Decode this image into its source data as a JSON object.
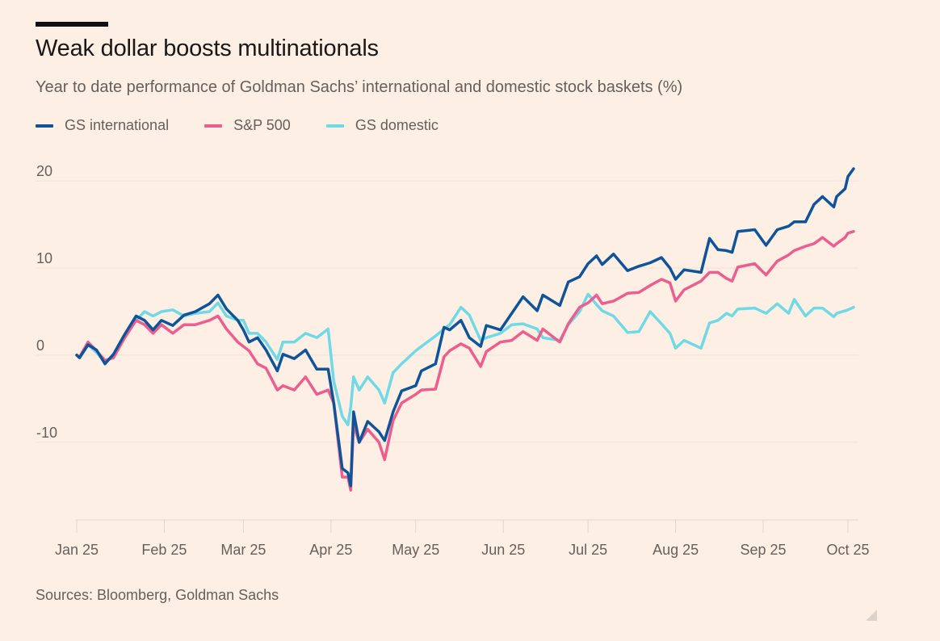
{
  "title": "Weak dollar boosts multinationals",
  "subtitle": "Year to date performance of Goldman Sachs’ international and domestic stock baskets (%)",
  "source": "Sources: Bloomberg, Goldman Sachs",
  "chart_data": {
    "type": "line",
    "title": "Weak dollar boosts multinationals",
    "xlabel": "",
    "ylabel": "",
    "legend": "top-left",
    "grid": true,
    "ylim": [
      -19,
      22.6
    ],
    "xlim": [
      "2025-01-01",
      "2025-10-01"
    ],
    "yticks": [
      -10,
      0,
      10,
      20
    ],
    "ytick_labels": [
      "-10",
      "0",
      "10",
      "20"
    ],
    "xticks": [
      "2025-01-01",
      "2025-02-01",
      "2025-03-01",
      "2025-04-01",
      "2025-05-01",
      "2025-06-01",
      "2025-07-01",
      "2025-08-01",
      "2025-09-01",
      "2025-10-01"
    ],
    "xtick_labels": [
      "Jan 25",
      "Feb 25",
      "Mar 25",
      "Apr 25",
      "May 25",
      "Jun 25",
      "Jul 25",
      "Aug 25",
      "Sep 25",
      "Oct 25"
    ],
    "x": [
      "2025-01-01",
      "2025-01-02",
      "2025-01-05",
      "2025-01-08",
      "2025-01-11",
      "2025-01-14",
      "2025-01-18",
      "2025-01-22",
      "2025-01-25",
      "2025-01-28",
      "2025-01-31",
      "2025-02-04",
      "2025-02-08",
      "2025-02-12",
      "2025-02-17",
      "2025-02-20",
      "2025-02-23",
      "2025-02-27",
      "2025-03-01",
      "2025-03-03",
      "2025-03-06",
      "2025-03-09",
      "2025-03-13",
      "2025-03-15",
      "2025-03-19",
      "2025-03-23",
      "2025-03-27",
      "2025-03-31",
      "2025-04-02",
      "2025-04-05",
      "2025-04-07",
      "2025-04-08",
      "2025-04-09",
      "2025-04-11",
      "2025-04-14",
      "2025-04-18",
      "2025-04-20",
      "2025-04-23",
      "2025-04-26",
      "2025-05-01",
      "2025-05-03",
      "2025-05-08",
      "2025-05-11",
      "2025-05-13",
      "2025-05-17",
      "2025-05-20",
      "2025-05-24",
      "2025-05-26",
      "2025-05-31",
      "2025-06-04",
      "2025-06-08",
      "2025-06-13",
      "2025-06-15",
      "2025-06-21",
      "2025-06-24",
      "2025-06-28",
      "2025-07-01",
      "2025-07-04",
      "2025-07-06",
      "2025-07-10",
      "2025-07-15",
      "2025-07-19",
      "2025-07-23",
      "2025-07-27",
      "2025-07-30",
      "2025-08-01",
      "2025-08-04",
      "2025-08-10",
      "2025-08-13",
      "2025-08-16",
      "2025-08-19",
      "2025-08-21",
      "2025-08-23",
      "2025-08-29",
      "2025-09-02",
      "2025-09-06",
      "2025-09-10",
      "2025-09-12",
      "2025-09-16",
      "2025-09-19",
      "2025-09-22",
      "2025-09-26",
      "2025-09-27",
      "2025-09-30",
      "2025-10-01",
      "2025-10-03"
    ],
    "series": [
      {
        "name": "GS international",
        "color": "#0f5499",
        "values": [
          0,
          -0.3,
          1.2,
          0.6,
          -1.0,
          0.1,
          2.4,
          4.5,
          4.0,
          2.9,
          4.0,
          3.4,
          4.6,
          5.0,
          5.9,
          6.9,
          5.3,
          4.0,
          2.9,
          1.5,
          2.0,
          0.6,
          -1.8,
          0.1,
          -0.4,
          0.6,
          -1.6,
          -1.6,
          -5.5,
          -13.0,
          -13.5,
          -15.0,
          -6.5,
          -10.0,
          -7.6,
          -8.8,
          -9.8,
          -6.5,
          -4.1,
          -3.5,
          -1.8,
          -1.0,
          3.2,
          2.9,
          4.0,
          2.0,
          1.0,
          3.4,
          2.9,
          4.8,
          6.7,
          5.1,
          6.9,
          5.7,
          8.4,
          9.0,
          10.5,
          11.4,
          10.4,
          11.6,
          9.7,
          10.2,
          10.6,
          11.2,
          10.0,
          8.7,
          9.8,
          9.5,
          13.4,
          12.1,
          12.0,
          11.8,
          14.2,
          14.4,
          12.6,
          14.4,
          14.8,
          15.3,
          15.3,
          17.3,
          18.2,
          17.0,
          18.2,
          19.1,
          20.5,
          21.4
        ]
      },
      {
        "name": "S&P 500",
        "color": "#eb5e8d",
        "values": [
          0,
          -0.2,
          1.5,
          0.5,
          -0.6,
          -0.3,
          2.0,
          4.0,
          3.5,
          2.5,
          3.5,
          2.5,
          3.5,
          3.5,
          4.0,
          4.5,
          3.0,
          1.5,
          1.0,
          0.5,
          -1.0,
          -1.5,
          -4.0,
          -3.5,
          -4.0,
          -2.5,
          -4.5,
          -4.0,
          -5.5,
          -14.0,
          -14.0,
          -15.5,
          -8.0,
          -10.0,
          -8.5,
          -10.0,
          -12.0,
          -7.5,
          -5.5,
          -4.5,
          -4.0,
          -3.9,
          -0.2,
          0.5,
          1.3,
          0.8,
          -1.3,
          0.4,
          1.5,
          1.7,
          2.7,
          1.7,
          3.0,
          1.5,
          3.6,
          5.5,
          6.0,
          6.9,
          5.9,
          6.2,
          7.1,
          7.2,
          8.0,
          8.7,
          8.3,
          6.2,
          7.5,
          8.5,
          9.5,
          9.5,
          8.8,
          8.5,
          10.1,
          10.5,
          9.2,
          10.8,
          11.5,
          12.0,
          12.5,
          12.8,
          13.5,
          12.5,
          12.8,
          13.5,
          14.0,
          14.2
        ]
      },
      {
        "name": "GS domestic",
        "color": "#6fdae6",
        "values": [
          0,
          -0.3,
          1.2,
          0.3,
          -0.8,
          0.0,
          2.2,
          4.0,
          5.0,
          4.5,
          5.0,
          5.2,
          4.5,
          4.8,
          5.0,
          6.0,
          4.5,
          4.0,
          4.0,
          2.5,
          2.5,
          1.5,
          -0.5,
          1.5,
          1.5,
          2.5,
          2.0,
          3.0,
          -3.0,
          -7.0,
          -8.0,
          -6.0,
          -2.5,
          -4.0,
          -2.5,
          -4.0,
          -5.5,
          -2.0,
          -1.0,
          0.5,
          1.0,
          2.2,
          3.0,
          3.5,
          5.5,
          4.6,
          1.7,
          2.0,
          2.5,
          3.5,
          3.6,
          3.0,
          2.0,
          1.7,
          3.5,
          5.0,
          7.0,
          5.8,
          5.1,
          4.5,
          2.6,
          2.7,
          5.0,
          3.6,
          2.5,
          0.8,
          1.7,
          0.8,
          3.7,
          4.0,
          4.8,
          4.5,
          5.3,
          5.4,
          4.8,
          5.9,
          4.8,
          6.4,
          4.5,
          5.4,
          5.4,
          4.4,
          4.8,
          5.1,
          5.2,
          5.5
        ]
      }
    ]
  }
}
